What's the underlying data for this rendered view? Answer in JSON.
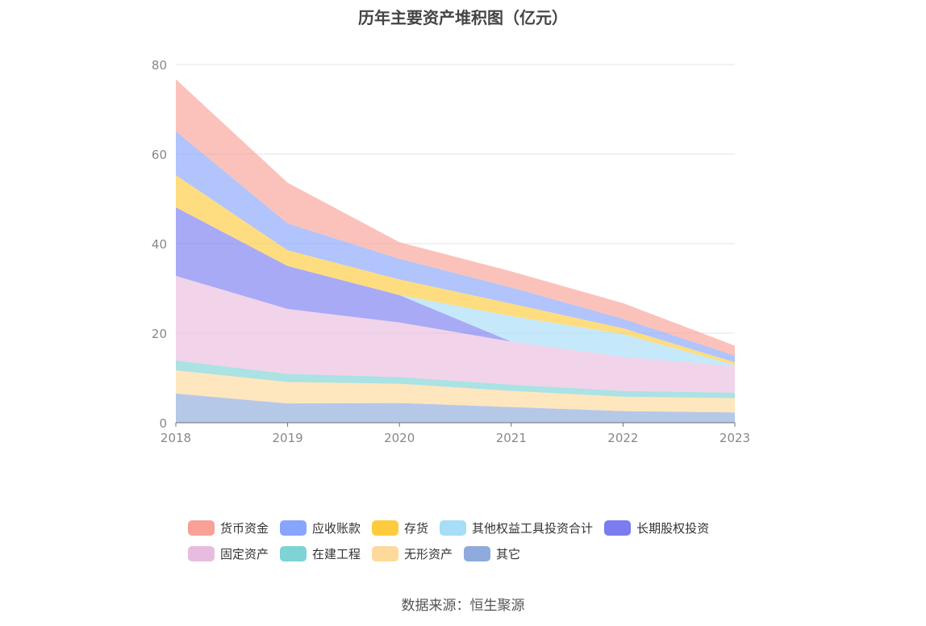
{
  "chart_data": {
    "type": "area",
    "stacked": true,
    "title": "历年主要资产堆积图（亿元）",
    "categories": [
      "2018",
      "2019",
      "2020",
      "2021",
      "2022",
      "2023"
    ],
    "ylim": [
      0,
      80
    ],
    "yticks": [
      "0",
      "20",
      "40",
      "60",
      "80"
    ],
    "grid": true,
    "legend_position": "bottom",
    "series": [
      {
        "name": "其它",
        "color": "#8faadc",
        "values": [
          6.5,
          4.3,
          4.4,
          3.5,
          2.6,
          2.3
        ]
      },
      {
        "name": "无形资产",
        "color": "#fdd99b",
        "values": [
          5.2,
          4.8,
          4.3,
          3.6,
          3.2,
          3.2
        ]
      },
      {
        "name": "在建工程",
        "color": "#7ed3d4",
        "values": [
          2.2,
          1.8,
          1.5,
          1.4,
          1.3,
          1.2
        ]
      },
      {
        "name": "固定资产",
        "color": "#e9bcdf",
        "values": [
          18.9,
          14.5,
          12.2,
          9.6,
          7.6,
          5.9
        ]
      },
      {
        "name": "长期股权投资",
        "color": "#7b7cf0",
        "values": [
          15.3,
          9.6,
          6.1,
          0,
          0,
          0
        ]
      },
      {
        "name": "其他权益工具投资合计",
        "color": "#a6ddf7",
        "values": [
          0,
          0,
          0,
          5.7,
          5.1,
          0.3
        ]
      },
      {
        "name": "存货",
        "color": "#fecb3e",
        "values": [
          7.2,
          3.5,
          3.5,
          2.8,
          1.3,
          0.6
        ]
      },
      {
        "name": "应收账款",
        "color": "#87a5fb",
        "values": [
          9.8,
          6.0,
          4.6,
          3.6,
          2.1,
          1.5
        ]
      },
      {
        "name": "货币资金",
        "color": "#f9a196",
        "values": [
          11.6,
          9.1,
          3.7,
          3.6,
          3.5,
          2.2
        ]
      }
    ]
  },
  "legend_rows": [
    [
      "货币资金",
      "应收账款",
      "存货",
      "其他权益工具投资合计",
      "长期股权投资"
    ],
    [
      "固定资产",
      "在建工程",
      "无形资产",
      "其它"
    ]
  ],
  "source": "数据来源：恒生聚源"
}
